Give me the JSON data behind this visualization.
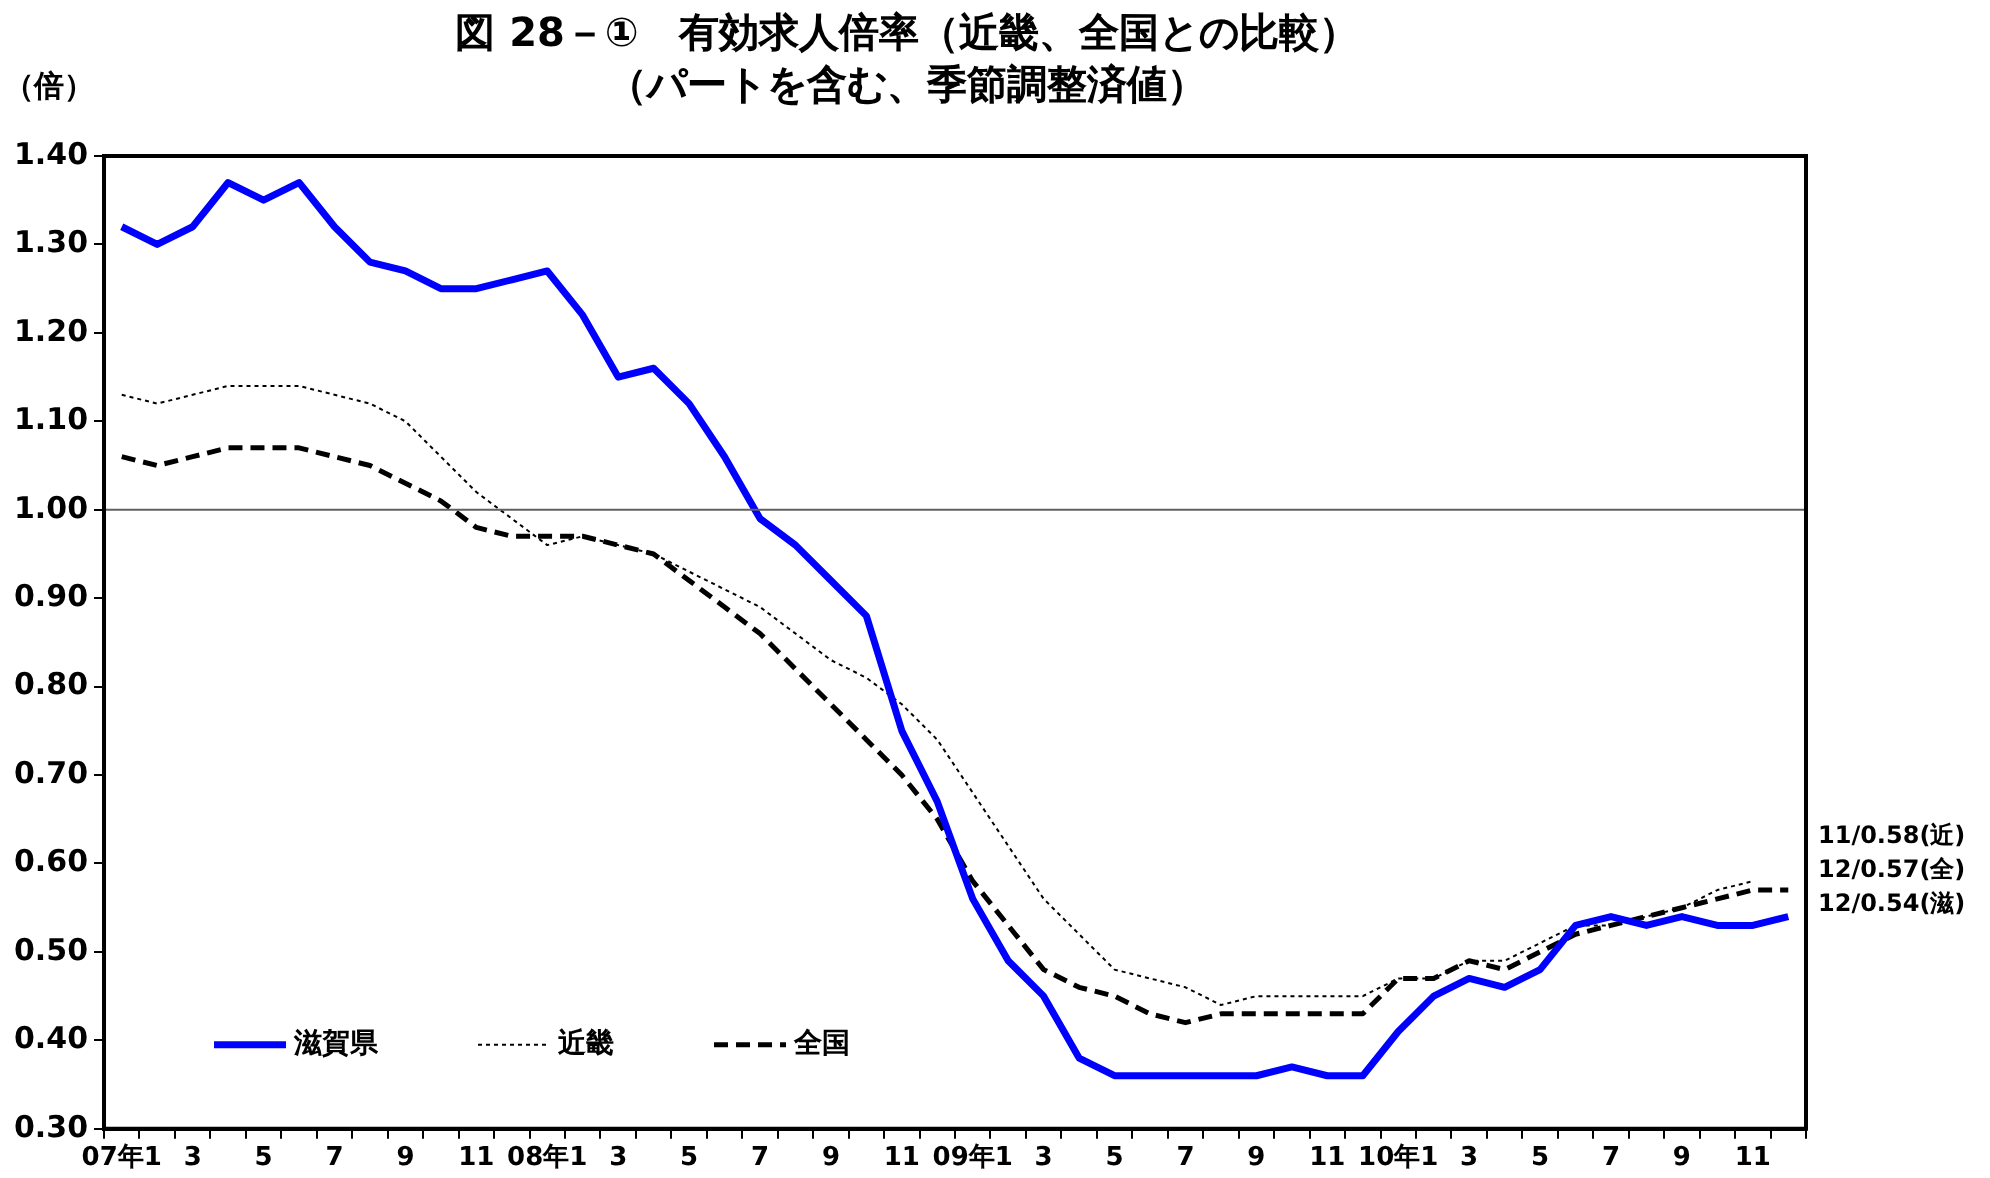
{
  "chart_data": {
    "type": "line",
    "title": "図 28－①　有効求人倍率（近畿、全国との比較）",
    "subtitle": "（パートを含む、季節調整済値）",
    "ylabel": "（倍）",
    "categories": [
      "07年1",
      null,
      "3",
      null,
      "5",
      null,
      "7",
      null,
      "9",
      null,
      "11",
      null,
      "08年1",
      null,
      "3",
      null,
      "5",
      null,
      "7",
      null,
      "9",
      null,
      "11",
      null,
      "09年1",
      null,
      "3",
      null,
      "5",
      null,
      "7",
      null,
      "9",
      null,
      "11",
      null,
      "10年1",
      null,
      "3",
      null,
      "5",
      null,
      "7",
      null,
      "9",
      null,
      "11",
      null
    ],
    "series": [
      {
        "name": "滋賀県",
        "color": "#0000ff",
        "line_style": "solid",
        "values": [
          1.32,
          1.3,
          1.32,
          1.37,
          1.35,
          1.37,
          1.32,
          1.28,
          1.27,
          1.25,
          1.25,
          1.26,
          1.27,
          1.22,
          1.15,
          1.16,
          1.12,
          1.06,
          0.99,
          0.96,
          0.92,
          0.88,
          0.75,
          0.67,
          0.56,
          0.49,
          0.45,
          0.38,
          0.36,
          0.36,
          0.36,
          0.36,
          0.36,
          0.37,
          0.36,
          0.36,
          0.41,
          0.45,
          0.47,
          0.46,
          0.48,
          0.53,
          0.54,
          0.53,
          0.54,
          0.53,
          0.53,
          0.54
        ]
      },
      {
        "name": "近畿",
        "color": "#000000",
        "line_style": "dotted",
        "values": [
          1.13,
          1.12,
          1.13,
          1.14,
          1.14,
          1.14,
          1.13,
          1.12,
          1.1,
          1.06,
          1.02,
          0.99,
          0.96,
          0.97,
          0.96,
          0.95,
          0.93,
          0.91,
          0.89,
          0.86,
          0.83,
          0.81,
          0.78,
          0.74,
          0.68,
          0.62,
          0.56,
          0.52,
          0.48,
          0.47,
          0.46,
          0.44,
          0.45,
          0.45,
          0.45,
          0.45,
          0.47,
          0.47,
          0.49,
          0.49,
          0.51,
          0.53,
          0.53,
          0.54,
          0.55,
          0.57,
          0.58,
          null
        ]
      },
      {
        "name": "全国",
        "color": "#000000",
        "line_style": "dashed",
        "values": [
          1.06,
          1.05,
          1.06,
          1.07,
          1.07,
          1.07,
          1.06,
          1.05,
          1.03,
          1.01,
          0.98,
          0.97,
          0.97,
          0.97,
          0.96,
          0.95,
          0.92,
          0.89,
          0.86,
          0.82,
          0.78,
          0.74,
          0.7,
          0.65,
          0.58,
          0.53,
          0.48,
          0.46,
          0.45,
          0.43,
          0.42,
          0.43,
          0.43,
          0.43,
          0.43,
          0.43,
          0.47,
          0.47,
          0.49,
          0.48,
          0.5,
          0.52,
          0.53,
          0.54,
          0.55,
          0.56,
          0.57,
          0.57
        ]
      }
    ],
    "ylim": [
      0.3,
      1.4
    ],
    "yticks": [
      {
        "value": 0.3,
        "label": "0.30"
      },
      {
        "value": 0.4,
        "label": "0.40"
      },
      {
        "value": 0.5,
        "label": "0.50"
      },
      {
        "value": 0.6,
        "label": "0.60"
      },
      {
        "value": 0.7,
        "label": "0.70"
      },
      {
        "value": 0.8,
        "label": "0.80"
      },
      {
        "value": 0.9,
        "label": "0.90"
      },
      {
        "value": 1.0,
        "label": "1.00"
      },
      {
        "value": 1.1,
        "label": "1.10"
      },
      {
        "value": 1.2,
        "label": "1.20"
      },
      {
        "value": 1.3,
        "label": "1.30"
      },
      {
        "value": 1.4,
        "label": "1.40"
      }
    ],
    "ref_lines": [
      {
        "axis": "y",
        "value": 1.0,
        "color": "#606060"
      }
    ],
    "annotations": [
      "11/0.58(近)",
      "12/0.57(全)",
      "12/0.54(滋)"
    ],
    "grid": false,
    "legend": "bottom left",
    "marker": "none"
  }
}
